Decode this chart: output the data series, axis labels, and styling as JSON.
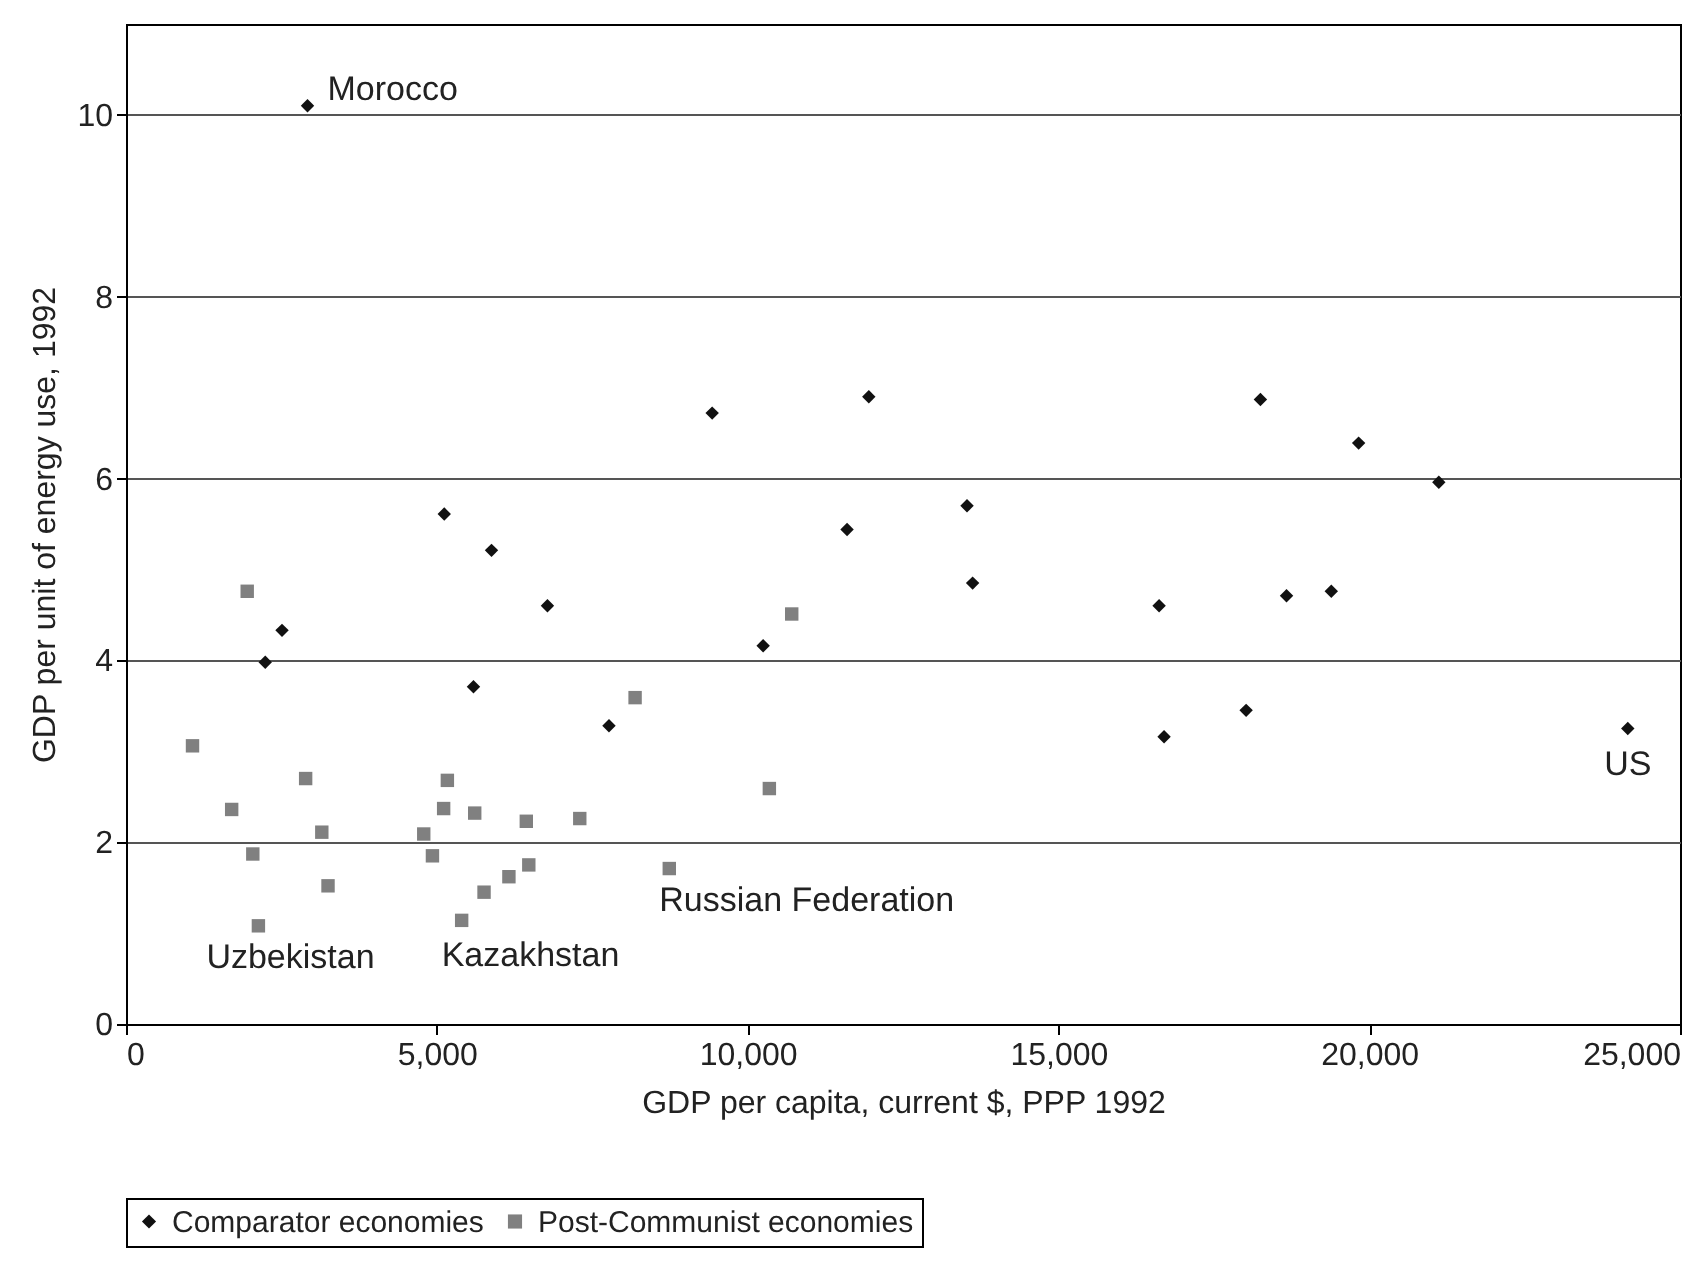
{
  "chart_data": {
    "type": "scatter",
    "xlabel": "GDP per capita, current $, PPP 1992",
    "ylabel": "GDP per unit of energy use, 1992",
    "xlim": [
      0,
      25000
    ],
    "xticks": [
      {
        "value": 0,
        "label": "0"
      },
      {
        "value": 5000,
        "label": "5,000"
      },
      {
        "value": 10000,
        "label": "10,000"
      },
      {
        "value": 15000,
        "label": "15,000"
      },
      {
        "value": 20000,
        "label": "20,000"
      },
      {
        "value": 25000,
        "label": "25,000"
      }
    ],
    "ylim": [
      0,
      11
    ],
    "yticks": [
      0,
      2,
      4,
      6,
      8,
      10
    ],
    "grid": "y",
    "legend": "bottom",
    "series": [
      {
        "name": "Comparator economies",
        "color": "#111111",
        "marker": "diamond",
        "x": [
          2920,
          5120,
          5880,
          6780,
          2510,
          2240,
          5590,
          7770,
          9430,
          11950,
          11600,
          13530,
          13620,
          10250,
          18250,
          19830,
          16620,
          18670,
          19390,
          16700,
          18020,
          21120,
          24160
        ],
        "values": [
          10.1,
          5.61,
          5.21,
          4.6,
          4.33,
          3.98,
          3.71,
          3.28,
          6.72,
          6.9,
          5.44,
          5.7,
          4.85,
          4.16,
          6.87,
          6.39,
          4.6,
          4.71,
          4.76,
          3.16,
          3.45,
          5.96,
          3.25
        ]
      },
      {
        "name": "Post-Communist economies",
        "color": "#808080",
        "marker": "square",
        "x": [
          1950,
          1070,
          2890,
          1700,
          3150,
          2040,
          3250,
          2130,
          5170,
          5110,
          5610,
          4790,
          4930,
          6440,
          7300,
          6480,
          6160,
          5760,
          5400,
          8190,
          8740,
          10350,
          10710
        ],
        "values": [
          4.76,
          3.06,
          2.7,
          2.36,
          2.11,
          1.87,
          1.52,
          1.08,
          2.68,
          2.37,
          2.32,
          2.09,
          1.85,
          2.23,
          2.26,
          1.75,
          1.62,
          1.45,
          1.14,
          3.59,
          1.71,
          2.59,
          4.51
        ]
      }
    ],
    "annotations": [
      {
        "text": "Morocco",
        "x": 2920,
        "y": 10.1
      },
      {
        "text": "Uzbekistan",
        "x": 2130,
        "y": 1.08
      },
      {
        "text": "Kazakhstan",
        "x": 5400,
        "y": 1.14
      },
      {
        "text": "Russian Federation",
        "x": 8740,
        "y": 1.71
      },
      {
        "text": "US",
        "x": 24160,
        "y": 3.25
      }
    ]
  }
}
